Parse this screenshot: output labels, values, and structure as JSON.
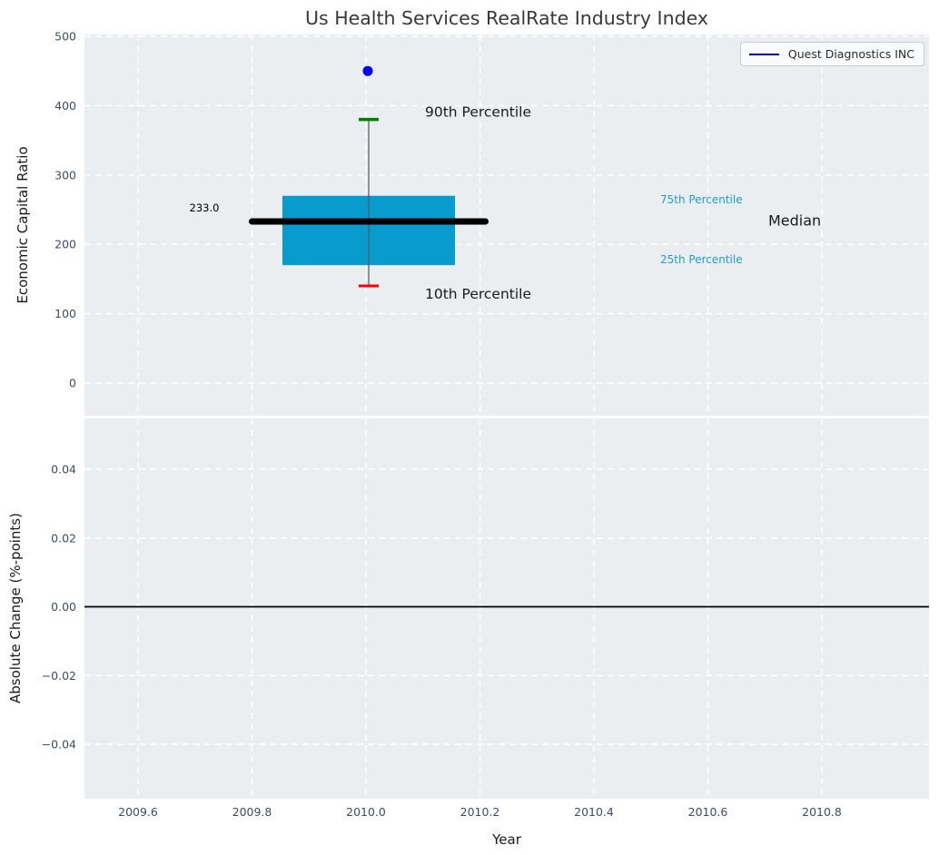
{
  "page": {
    "background": "#ffffff"
  },
  "colors": {
    "plot_bg": "#eaeef0",
    "grid": "#ffffff",
    "tick_label": "#3d4c63",
    "title": "#383838",
    "axis_label": "#1a1a1a",
    "box_fill": "#089cce",
    "median_line": "#000000",
    "whisker": "#555555",
    "p90_cap": "#008000",
    "p10_cap": "#ff0000",
    "marker": "#0000ff",
    "legend_line": "#0000dd",
    "percentile_label": "#1f9ec9",
    "zero_line": "#000000",
    "annotation_dark": "#1a1a1a",
    "annotation_value": "#000000"
  },
  "chart_data": {
    "type": "boxplot",
    "title": "Us Health Services RealRate Industry Index",
    "xlabel": "Year",
    "xlim": [
      2009.506,
      2010.988
    ],
    "grid": "dashed-white",
    "x_ticks": [
      {
        "value": 2009.6,
        "label": "2009.6"
      },
      {
        "value": 2009.8,
        "label": "2009.8"
      },
      {
        "value": 2010.0,
        "label": "2010.0"
      },
      {
        "value": 2010.2,
        "label": "2010.2"
      },
      {
        "value": 2010.4,
        "label": "2010.4"
      },
      {
        "value": 2010.6,
        "label": "2010.6"
      },
      {
        "value": 2010.8,
        "label": "2010.8"
      }
    ],
    "legend": {
      "position": "upper right",
      "entries": [
        {
          "label": "Quest Diagnostics INC",
          "color": "#0000dd"
        }
      ]
    },
    "panels": [
      {
        "id": "economic-capital-ratio",
        "ylabel": "Economic Capital Ratio",
        "ylim": [
          -47,
          503
        ],
        "y_ticks": [
          {
            "value": 0,
            "label": "0"
          },
          {
            "value": 100,
            "label": "100"
          },
          {
            "value": 200,
            "label": "200"
          },
          {
            "value": 300,
            "label": "300"
          },
          {
            "value": 400,
            "label": "400"
          },
          {
            "value": 500,
            "label": "500"
          }
        ],
        "box": {
          "x": 2010.0,
          "p10": 140,
          "p25": 170,
          "median": 233,
          "p75": 270,
          "p90": 380
        },
        "marker": {
          "name": "Quest Diagnostics INC",
          "x": 2010.0,
          "y": 450
        },
        "annotations": [
          {
            "id": "median-value",
            "text": "233.0"
          },
          {
            "id": "p90-label",
            "text": "90th Percentile"
          },
          {
            "id": "p10-label",
            "text": "10th Percentile"
          },
          {
            "id": "p75-label",
            "text": "75th Percentile"
          },
          {
            "id": "p25-label",
            "text": "25th Percentile"
          },
          {
            "id": "median-label",
            "text": "Median"
          }
        ]
      },
      {
        "id": "absolute-change",
        "ylabel": "Absolute Change (%-points)",
        "ylim": [
          -0.056,
          0.055
        ],
        "y_ticks": [
          {
            "value": 0.04,
            "label": "0.04"
          },
          {
            "value": 0.02,
            "label": "0.02"
          },
          {
            "value": 0.0,
            "label": "0.00"
          },
          {
            "value": -0.02,
            "label": "−0.02"
          },
          {
            "value": -0.04,
            "label": "−0.04"
          }
        ],
        "zero_line": true
      }
    ]
  }
}
